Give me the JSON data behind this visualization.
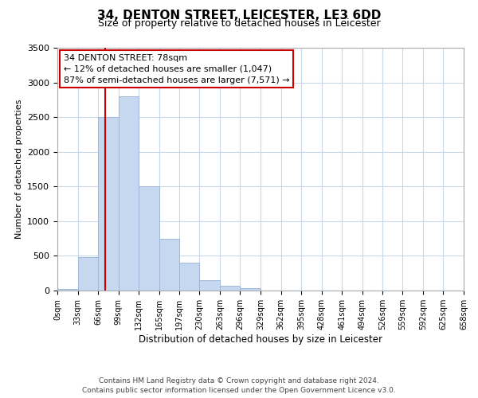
{
  "title_line1": "34, DENTON STREET, LEICESTER, LE3 6DD",
  "title_line2": "Size of property relative to detached houses in Leicester",
  "xlabel": "Distribution of detached houses by size in Leicester",
  "ylabel": "Number of detached properties",
  "bin_edges": [
    0,
    33,
    66,
    99,
    132,
    165,
    197,
    230,
    263,
    296,
    329,
    362,
    395,
    428,
    461,
    494,
    526,
    559,
    592,
    625,
    658
  ],
  "bin_counts": [
    25,
    480,
    2500,
    2800,
    1500,
    750,
    400,
    150,
    70,
    30,
    0,
    0,
    0,
    0,
    0,
    0,
    0,
    0,
    0,
    0
  ],
  "bar_color": "#c5d8f0",
  "bar_edgecolor": "#a0b8d8",
  "vline_x": 78,
  "vline_color": "#cc0000",
  "ylim": [
    0,
    3500
  ],
  "yticks": [
    0,
    500,
    1000,
    1500,
    2000,
    2500,
    3000,
    3500
  ],
  "annotation_title": "34 DENTON STREET: 78sqm",
  "annotation_line2": "← 12% of detached houses are smaller (1,047)",
  "annotation_line3": "87% of semi-detached houses are larger (7,571) →",
  "annotation_box_facecolor": "#ffffff",
  "annotation_box_edgecolor": "#cc0000",
  "footer_line1": "Contains HM Land Registry data © Crown copyright and database right 2024.",
  "footer_line2": "Contains public sector information licensed under the Open Government Licence v3.0.",
  "tick_labels": [
    "0sqm",
    "33sqm",
    "66sqm",
    "99sqm",
    "132sqm",
    "165sqm",
    "197sqm",
    "230sqm",
    "263sqm",
    "296sqm",
    "329sqm",
    "362sqm",
    "395sqm",
    "428sqm",
    "461sqm",
    "494sqm",
    "526sqm",
    "559sqm",
    "592sqm",
    "625sqm",
    "658sqm"
  ],
  "background_color": "#ffffff",
  "grid_color": "#c8d8e8",
  "title_fontsize": 11,
  "subtitle_fontsize": 9,
  "ylabel_fontsize": 8,
  "xlabel_fontsize": 8.5,
  "tick_fontsize": 7,
  "annotation_fontsize": 8,
  "footer_fontsize": 6.5
}
